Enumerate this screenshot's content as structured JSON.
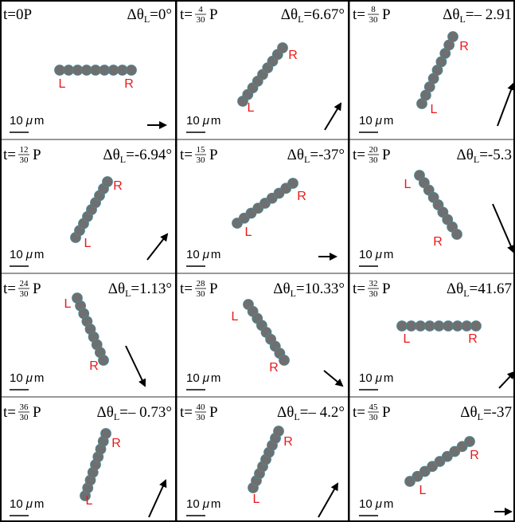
{
  "time_prefix": "t=",
  "time_unit": "P",
  "angle_symbol": "Δθ",
  "angle_sub": "L",
  "equals": "=",
  "left_label": "L",
  "right_label": "R",
  "scale_value": "10",
  "scale_mu": "μ",
  "scale_m": "m",
  "panels": [
    {
      "t_num": "0",
      "angle": "0°"
    },
    {
      "t_num": "4",
      "t_den": "30",
      "angle": "6.67°"
    },
    {
      "t_num": "8",
      "t_den": "30",
      "angle": "– 2.91"
    },
    {
      "t_num": "12",
      "t_den": "30",
      "angle": "-6.94°"
    },
    {
      "t_num": "15",
      "t_den": "30",
      "angle": "-37°"
    },
    {
      "t_num": "20",
      "t_den": "30",
      "angle": "-5.3"
    },
    {
      "t_num": "24",
      "t_den": "30",
      "angle": "1.13°"
    },
    {
      "t_num": "28",
      "t_den": "30",
      "angle": "10.33°"
    },
    {
      "t_num": "32",
      "t_den": "30",
      "angle": "41.67"
    },
    {
      "t_num": "36",
      "t_den": "30",
      "angle": "– 0.73°"
    },
    {
      "t_num": "40",
      "t_den": "30",
      "angle": "– 4.2°"
    },
    {
      "t_num": "45",
      "t_den": "30",
      "angle": "-37"
    }
  ]
}
